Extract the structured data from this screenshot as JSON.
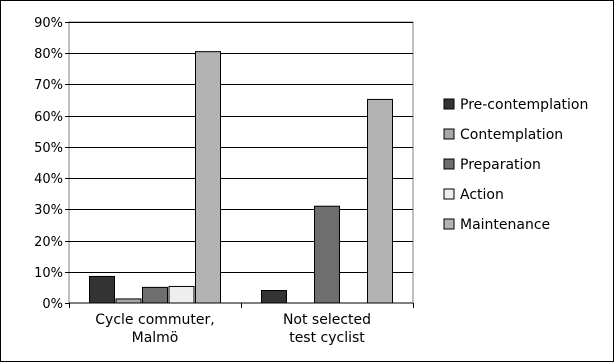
{
  "chart_data": {
    "type": "bar",
    "title": "",
    "xlabel": "",
    "ylabel": "",
    "ylim": [
      0,
      90
    ],
    "yticks": [
      0,
      10,
      20,
      30,
      40,
      50,
      60,
      70,
      80,
      90
    ],
    "ytick_labels": [
      "0%",
      "10%",
      "20%",
      "30%",
      "40%",
      "50%",
      "60%",
      "70%",
      "80%",
      "90%"
    ],
    "grid": true,
    "legend_position": "right",
    "categories": [
      {
        "lines": [
          "Cycle commuter,",
          "Malmö"
        ]
      },
      {
        "lines": [
          "Not selected",
          "test cyclist"
        ]
      }
    ],
    "series": [
      {
        "name": "Pre-contemplation",
        "color": "#333333",
        "values": [
          8.5,
          4
        ]
      },
      {
        "name": "Contemplation",
        "color": "#a6a6a6",
        "values": [
          1.3,
          0
        ]
      },
      {
        "name": "Preparation",
        "color": "#6e6e6e",
        "values": [
          5,
          31
        ]
      },
      {
        "name": "Action",
        "color": "#eeeeee",
        "values": [
          5.3,
          0
        ]
      },
      {
        "name": "Maintenance",
        "color": "#b3b3b3",
        "values": [
          80.5,
          65.2
        ]
      }
    ]
  }
}
